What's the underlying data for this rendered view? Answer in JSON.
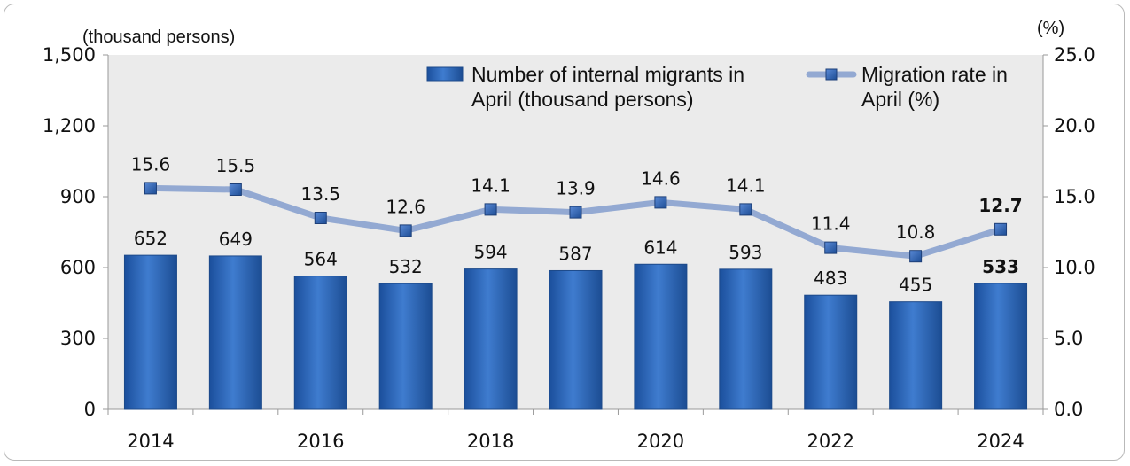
{
  "chart_data": {
    "type": "bar+line",
    "x": [
      "2014",
      "2015",
      "2016",
      "2017",
      "2018",
      "2019",
      "2020",
      "2021",
      "2022",
      "2023",
      "2024"
    ],
    "x_tick_labels": [
      "2014",
      "",
      "2016",
      "",
      "2018",
      "",
      "2020",
      "",
      "2022",
      "",
      "2024"
    ],
    "series": [
      {
        "name": "Number of internal migrants in April (thousand persons)",
        "legend_lines": [
          "Number of internal migrants in",
          "April (thousand persons)"
        ],
        "type": "bar",
        "axis": "left",
        "color": "#2d5ea8",
        "values": [
          652,
          649,
          564,
          532,
          594,
          587,
          614,
          593,
          483,
          455,
          533
        ],
        "labels": [
          "652",
          "649",
          "564",
          "532",
          "594",
          "587",
          "614",
          "593",
          "483",
          "455",
          "533"
        ],
        "bold_index": 10
      },
      {
        "name": "Migration rate in April (%)",
        "legend_lines": [
          "Migration rate in",
          "April (%)"
        ],
        "type": "line",
        "axis": "right",
        "color": "#93a9d2",
        "marker_color": "#2d5ea8",
        "values": [
          15.6,
          15.5,
          13.5,
          12.6,
          14.1,
          13.9,
          14.6,
          14.1,
          11.4,
          10.8,
          12.7
        ],
        "labels": [
          "15.6",
          "15.5",
          "13.5",
          "12.6",
          "14.1",
          "13.9",
          "14.6",
          "14.1",
          "11.4",
          "10.8",
          "12.7"
        ],
        "bold_index": 10
      }
    ],
    "y_left": {
      "unit_label": "(thousand persons)",
      "range": [
        0,
        1500
      ],
      "ticks": [
        0,
        300,
        600,
        900,
        1200,
        1500
      ],
      "tick_labels": [
        "0",
        "300",
        "600",
        "900",
        "1,200",
        "1,500"
      ]
    },
    "y_right": {
      "unit_label": "(%)",
      "range": [
        0,
        25
      ],
      "ticks": [
        0,
        5,
        10,
        15,
        20,
        25
      ],
      "tick_labels": [
        "0.0",
        "5.0",
        "10.0",
        "15.0",
        "20.0",
        "25.0"
      ]
    },
    "grid": false,
    "legend_position": "top-right",
    "plot_background": "#ebebeb"
  }
}
